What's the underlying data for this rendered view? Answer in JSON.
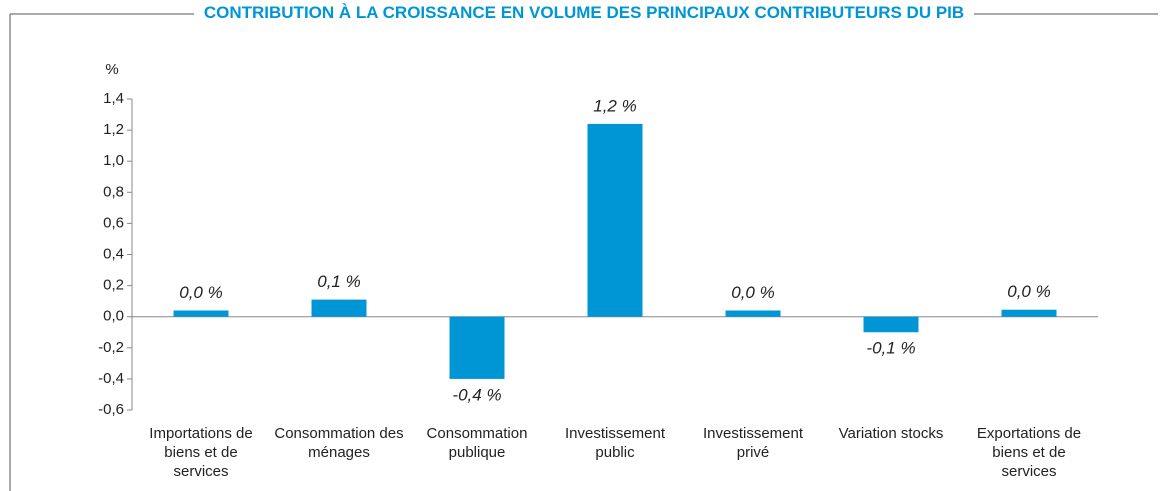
{
  "chart_data": {
    "type": "bar",
    "title": "CONTRIBUTION À LA CROISSANCE EN VOLUME DES PRINCIPAUX CONTRIBUTEURS DU PIB",
    "y_label": "%",
    "categories": [
      "Importations de biens et de services",
      "Consommation des ménages",
      "Consommation publique",
      "Investissement public",
      "Investissement privé",
      "Variation stocks",
      "Exportations de biens et de services"
    ],
    "values": [
      0.04,
      0.11,
      -0.4,
      1.24,
      0.04,
      -0.1,
      0.045
    ],
    "value_labels": [
      "0,0 %",
      "0,1 %",
      "-0,4 %",
      "1,2 %",
      "0,0 %",
      "-0,1 %",
      "0,0 %"
    ],
    "color": "#0096d6",
    "title_color": "#0096d6",
    "ylim": [
      -0.6,
      1.4
    ],
    "yticks": [
      {
        "value": -0.6,
        "label": "-0,6"
      },
      {
        "value": -0.4,
        "label": "-0,4"
      },
      {
        "value": -0.2,
        "label": "-0,2"
      },
      {
        "value": 0,
        "label": "0,0"
      },
      {
        "value": 0.2,
        "label": "0,2"
      },
      {
        "value": 0.4,
        "label": "0,4"
      },
      {
        "value": 0.6,
        "label": "0,6"
      },
      {
        "value": 0.8,
        "label": "0,8"
      },
      {
        "value": 1.0,
        "label": "1,0"
      },
      {
        "value": 1.2,
        "label": "1,2"
      },
      {
        "value": 1.4,
        "label": "1,4"
      }
    ]
  }
}
